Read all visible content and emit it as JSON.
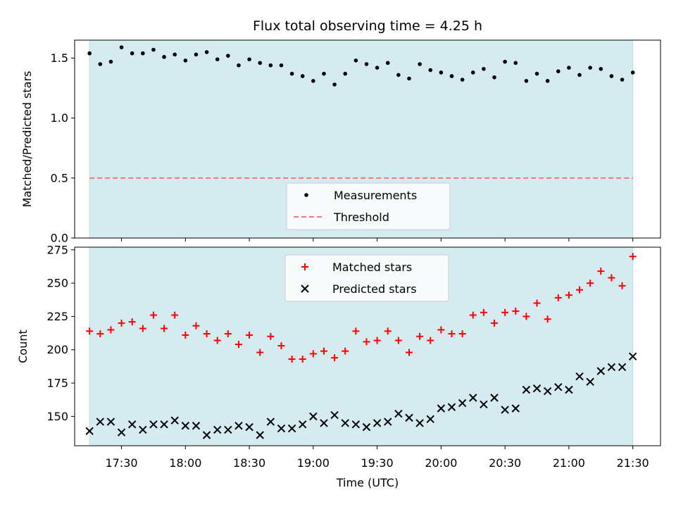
{
  "chart_data": {
    "title": "Flux total observing time = 4.25 h",
    "xlabel": "Time (UTC)",
    "x_tick_labels": [
      "17:30",
      "18:00",
      "18:30",
      "19:00",
      "19:30",
      "20:00",
      "20:30",
      "21:00",
      "21:30"
    ],
    "x_ticks": [
      "17:30",
      "18:00",
      "18:30",
      "19:00",
      "19:30",
      "20:00",
      "20:30",
      "21:00",
      "21:30"
    ],
    "xlim": [
      "17:08",
      "21:43"
    ],
    "shaded_span": [
      "17:15",
      "21:30"
    ],
    "shade_color": "#d5ebf0",
    "panels": [
      {
        "type": "scatter",
        "ylabel": "Matched/Predicted stars",
        "ylim": [
          0,
          1.65
        ],
        "y_ticks": [
          0.0,
          0.5,
          1.0,
          1.5
        ],
        "y_tick_labels": [
          "0.0",
          "0.5",
          "1.0",
          "1.5"
        ],
        "legend_position": "lower center",
        "series": [
          {
            "name": "Measurements",
            "marker": "dot",
            "color": "#000000",
            "x": [
              "17:15",
              "17:20",
              "17:25",
              "17:30",
              "17:35",
              "17:40",
              "17:45",
              "17:50",
              "17:55",
              "18:00",
              "18:05",
              "18:10",
              "18:15",
              "18:20",
              "18:25",
              "18:30",
              "18:35",
              "18:40",
              "18:45",
              "18:50",
              "18:55",
              "19:00",
              "19:05",
              "19:10",
              "19:15",
              "19:20",
              "19:25",
              "19:30",
              "19:35",
              "19:40",
              "19:45",
              "19:50",
              "19:55",
              "20:00",
              "20:05",
              "20:10",
              "20:15",
              "20:20",
              "20:25",
              "20:30",
              "20:35",
              "20:40",
              "20:45",
              "20:50",
              "20:55",
              "21:00",
              "21:05",
              "21:10",
              "21:15",
              "21:20",
              "21:25",
              "21:30"
            ],
            "y": [
              1.54,
              1.45,
              1.47,
              1.59,
              1.54,
              1.54,
              1.57,
              1.51,
              1.53,
              1.48,
              1.53,
              1.55,
              1.49,
              1.52,
              1.44,
              1.49,
              1.46,
              1.44,
              1.44,
              1.37,
              1.35,
              1.31,
              1.37,
              1.28,
              1.37,
              1.48,
              1.45,
              1.42,
              1.46,
              1.36,
              1.33,
              1.45,
              1.4,
              1.38,
              1.35,
              1.32,
              1.38,
              1.41,
              1.34,
              1.47,
              1.46,
              1.31,
              1.37,
              1.31,
              1.39,
              1.42,
              1.36,
              1.42,
              1.41,
              1.35,
              1.32,
              1.38
            ]
          },
          {
            "name": "Threshold",
            "type": "line",
            "style": "dashed",
            "color": "#f07a7a",
            "x": [
              "17:15",
              "21:30"
            ],
            "y": [
              0.5,
              0.5
            ]
          }
        ]
      },
      {
        "type": "scatter",
        "ylabel": "Count",
        "ylim": [
          128,
          277
        ],
        "y_ticks": [
          150,
          175,
          200,
          225,
          250,
          275
        ],
        "y_tick_labels": [
          "150",
          "175",
          "200",
          "225",
          "250",
          "275"
        ],
        "legend_position": "upper center",
        "series": [
          {
            "name": "Matched stars",
            "marker": "plus",
            "color": "#ff0000",
            "x": [
              "17:15",
              "17:20",
              "17:25",
              "17:30",
              "17:35",
              "17:40",
              "17:45",
              "17:50",
              "17:55",
              "18:00",
              "18:05",
              "18:10",
              "18:15",
              "18:20",
              "18:25",
              "18:30",
              "18:35",
              "18:40",
              "18:45",
              "18:50",
              "18:55",
              "19:00",
              "19:05",
              "19:10",
              "19:15",
              "19:20",
              "19:25",
              "19:30",
              "19:35",
              "19:40",
              "19:45",
              "19:50",
              "19:55",
              "20:00",
              "20:05",
              "20:10",
              "20:15",
              "20:20",
              "20:25",
              "20:30",
              "20:35",
              "20:40",
              "20:45",
              "20:50",
              "20:55",
              "21:00",
              "21:05",
              "21:10",
              "21:15",
              "21:20",
              "21:25",
              "21:30"
            ],
            "y": [
              214,
              212,
              215,
              220,
              221,
              216,
              226,
              216,
              226,
              211,
              218,
              212,
              207,
              212,
              204,
              211,
              198,
              210,
              203,
              193,
              193,
              197,
              199,
              194,
              199,
              214,
              206,
              207,
              214,
              207,
              198,
              210,
              207,
              215,
              212,
              212,
              226,
              228,
              220,
              228,
              229,
              225,
              235,
              223,
              239,
              241,
              245,
              250,
              259,
              254,
              248,
              270
            ]
          },
          {
            "name": "Predicted stars",
            "marker": "x",
            "color": "#000000",
            "x": [
              "17:15",
              "17:20",
              "17:25",
              "17:30",
              "17:35",
              "17:40",
              "17:45",
              "17:50",
              "17:55",
              "18:00",
              "18:05",
              "18:10",
              "18:15",
              "18:20",
              "18:25",
              "18:30",
              "18:35",
              "18:40",
              "18:45",
              "18:50",
              "18:55",
              "19:00",
              "19:05",
              "19:10",
              "19:15",
              "19:20",
              "19:25",
              "19:30",
              "19:35",
              "19:40",
              "19:45",
              "19:50",
              "19:55",
              "20:00",
              "20:05",
              "20:10",
              "20:15",
              "20:20",
              "20:25",
              "20:30",
              "20:35",
              "20:40",
              "20:45",
              "20:50",
              "20:55",
              "21:00",
              "21:05",
              "21:10",
              "21:15",
              "21:20",
              "21:25",
              "21:30"
            ],
            "y": [
              139,
              146,
              146,
              138,
              144,
              140,
              144,
              144,
              147,
              143,
              143,
              136,
              140,
              140,
              143,
              142,
              136,
              146,
              141,
              141,
              144,
              150,
              145,
              151,
              145,
              144,
              142,
              145,
              146,
              152,
              149,
              145,
              148,
              156,
              157,
              160,
              164,
              159,
              164,
              155,
              156,
              170,
              171,
              169,
              172,
              170,
              180,
              176,
              184,
              187,
              187,
              195
            ]
          }
        ]
      }
    ]
  }
}
